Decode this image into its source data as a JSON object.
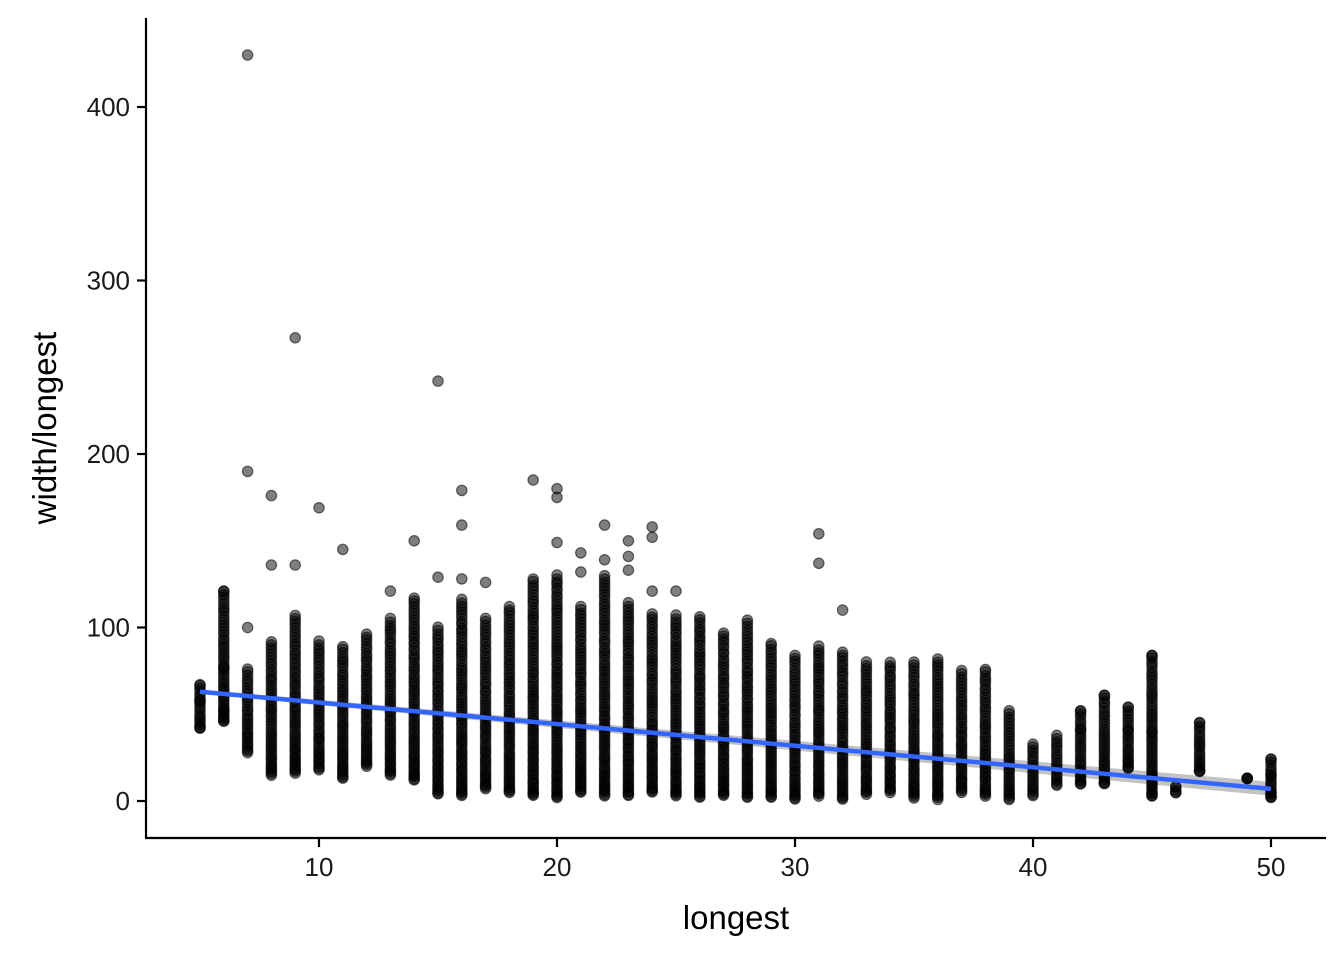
{
  "chart_data": {
    "type": "scatter",
    "xlabel": "longest",
    "ylabel": "width/longest",
    "xlim": [
      3,
      52
    ],
    "ylim": [
      -22,
      450
    ],
    "x_ticks": [
      10,
      20,
      30,
      40,
      50
    ],
    "x_tick_labels": [
      "10",
      "20",
      "30",
      "40",
      "50"
    ],
    "y_ticks": [
      0,
      100,
      200,
      300,
      400
    ],
    "y_tick_labels": [
      "0",
      "100",
      "200",
      "300",
      "400"
    ],
    "grid": false,
    "legend": "none",
    "colors": {
      "points": "#000000",
      "trend": "#3366FF",
      "ribbon": "#BDBDBD"
    },
    "trend_line": {
      "method": "lm",
      "x": [
        5,
        50
      ],
      "y": [
        63,
        7
      ]
    },
    "columns": [
      {
        "x": 5,
        "min": 42,
        "max": 67,
        "outliers": [
          67,
          58,
          42
        ]
      },
      {
        "x": 6,
        "min": 46,
        "max": 121,
        "outliers": [
          121,
          77,
          52,
          46
        ]
      },
      {
        "x": 7,
        "min": 28,
        "max": 76,
        "outliers": [
          430,
          190,
          100
        ]
      },
      {
        "x": 8,
        "min": 15,
        "max": 92,
        "outliers": [
          176,
          136
        ]
      },
      {
        "x": 9,
        "min": 16,
        "max": 107,
        "outliers": [
          267,
          136
        ]
      },
      {
        "x": 10,
        "min": 18,
        "max": 92,
        "outliers": [
          169
        ]
      },
      {
        "x": 11,
        "min": 13,
        "max": 89,
        "outliers": [
          145
        ]
      },
      {
        "x": 12,
        "min": 20,
        "max": 96,
        "outliers": []
      },
      {
        "x": 13,
        "min": 15,
        "max": 105,
        "outliers": [
          121
        ]
      },
      {
        "x": 14,
        "min": 12,
        "max": 117,
        "outliers": [
          150
        ]
      },
      {
        "x": 15,
        "min": 4,
        "max": 100,
        "outliers": [
          242,
          129
        ]
      },
      {
        "x": 16,
        "min": 3,
        "max": 116,
        "outliers": [
          179,
          159,
          128
        ]
      },
      {
        "x": 17,
        "min": 7,
        "max": 105,
        "outliers": [
          126
        ]
      },
      {
        "x": 18,
        "min": 5,
        "max": 112,
        "outliers": []
      },
      {
        "x": 19,
        "min": 3,
        "max": 128,
        "outliers": [
          185
        ]
      },
      {
        "x": 20,
        "min": 2,
        "max": 130,
        "outliers": [
          180,
          175,
          149
        ]
      },
      {
        "x": 21,
        "min": 5,
        "max": 112,
        "outliers": [
          143,
          132
        ]
      },
      {
        "x": 22,
        "min": 3,
        "max": 130,
        "outliers": [
          159,
          139
        ]
      },
      {
        "x": 23,
        "min": 3,
        "max": 114,
        "outliers": [
          150,
          141,
          133
        ]
      },
      {
        "x": 24,
        "min": 5,
        "max": 108,
        "outliers": [
          158,
          152,
          121
        ]
      },
      {
        "x": 25,
        "min": 3,
        "max": 107,
        "outliers": [
          121
        ]
      },
      {
        "x": 26,
        "min": 2,
        "max": 106,
        "outliers": []
      },
      {
        "x": 27,
        "min": 3,
        "max": 97,
        "outliers": []
      },
      {
        "x": 28,
        "min": 2,
        "max": 104,
        "outliers": []
      },
      {
        "x": 29,
        "min": 2,
        "max": 91,
        "outliers": []
      },
      {
        "x": 30,
        "min": 1,
        "max": 84,
        "outliers": []
      },
      {
        "x": 31,
        "min": 3,
        "max": 89,
        "outliers": [
          154,
          137
        ]
      },
      {
        "x": 32,
        "min": 1,
        "max": 86,
        "outliers": [
          110
        ]
      },
      {
        "x": 33,
        "min": 4,
        "max": 80,
        "outliers": []
      },
      {
        "x": 34,
        "min": 5,
        "max": 80,
        "outliers": []
      },
      {
        "x": 35,
        "min": 2,
        "max": 80,
        "outliers": []
      },
      {
        "x": 36,
        "min": 1,
        "max": 82,
        "outliers": []
      },
      {
        "x": 37,
        "min": 5,
        "max": 75,
        "outliers": []
      },
      {
        "x": 38,
        "min": 3,
        "max": 76,
        "outliers": []
      },
      {
        "x": 39,
        "min": 1,
        "max": 52,
        "outliers": []
      },
      {
        "x": 40,
        "min": 3,
        "max": 33,
        "outliers": []
      },
      {
        "x": 41,
        "min": 9,
        "max": 38,
        "outliers": []
      },
      {
        "x": 42,
        "min": 10,
        "max": 52,
        "outliers": [
          52,
          41,
          10
        ]
      },
      {
        "x": 43,
        "min": 10,
        "max": 61,
        "outliers": [
          61,
          10
        ]
      },
      {
        "x": 44,
        "min": 19,
        "max": 54,
        "outliers": [
          54,
          41,
          19
        ]
      },
      {
        "x": 45,
        "min": 3,
        "max": 84,
        "outliers": [
          84,
          40,
          14,
          3
        ]
      },
      {
        "x": 46,
        "min": 5,
        "max": 8,
        "outliers": [
          8,
          5
        ]
      },
      {
        "x": 47,
        "min": 17,
        "max": 45,
        "outliers": [
          45,
          17
        ]
      },
      {
        "x": 49,
        "min": 13,
        "max": 13,
        "outliers": [
          13
        ]
      },
      {
        "x": 50,
        "min": 2,
        "max": 24,
        "outliers": [
          24,
          15,
          5,
          2
        ]
      }
    ]
  }
}
